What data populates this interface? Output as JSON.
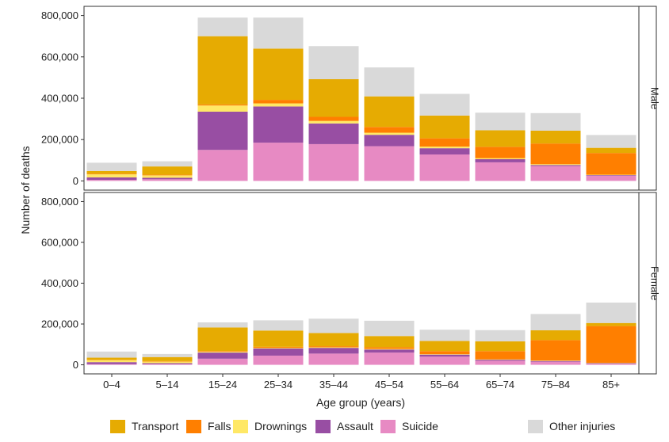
{
  "chart_data": {
    "type": "bar",
    "stacked": true,
    "facets": [
      "Male",
      "Female"
    ],
    "categories": [
      "0–4",
      "5–14",
      "15–24",
      "25–34",
      "35–44",
      "45–54",
      "55–64",
      "65–74",
      "75–84",
      "85+"
    ],
    "xlabel": "Age group (years)",
    "ylabel": "Number of deaths",
    "ylim": [
      0,
      800000
    ],
    "yticks": [
      0,
      200000,
      400000,
      600000,
      800000
    ],
    "ytick_labels": [
      "0",
      "200,000",
      "400,000",
      "600,000",
      "800,000"
    ],
    "legend_position": "bottom",
    "series_order": [
      "Suicide",
      "Assault",
      "Drownings",
      "Falls",
      "Transport",
      "Other injuries"
    ],
    "colors": {
      "Transport": "#e6ab02",
      "Falls": "#ff7f00",
      "Drownings": "#ffe866",
      "Assault": "#984ea3",
      "Suicide": "#e78ac3",
      "Other injuries": "#d9d9d9"
    },
    "panels": [
      {
        "facet": "Male",
        "series": [
          {
            "name": "Suicide",
            "values": [
              5000,
              8000,
              150000,
              185000,
              178000,
              168000,
              128000,
              90000,
              72000,
              25000
            ]
          },
          {
            "name": "Assault",
            "values": [
              12000,
              7000,
              185000,
              175000,
              100000,
              55000,
              30000,
              15000,
              5000,
              3000
            ]
          },
          {
            "name": "Drownings",
            "values": [
              15000,
              12000,
              30000,
              15000,
              12000,
              10000,
              8000,
              5000,
              4000,
              2000
            ]
          },
          {
            "name": "Falls",
            "values": [
              3000,
              3000,
              5000,
              17000,
              20000,
              28000,
              40000,
              55000,
              100000,
              105000
            ]
          },
          {
            "name": "Transport",
            "values": [
              13000,
              40000,
              330000,
              248000,
              182000,
              148000,
              110000,
              80000,
              62000,
              25000
            ]
          },
          {
            "name": "Other injuries",
            "values": [
              40000,
              25000,
              90000,
              150000,
              160000,
              140000,
              105000,
              85000,
              85000,
              62000
            ]
          }
        ]
      },
      {
        "facet": "Female",
        "series": [
          {
            "name": "Suicide",
            "values": [
              3000,
              3000,
              30000,
              45000,
              55000,
              60000,
              40000,
              20000,
              15000,
              5000
            ]
          },
          {
            "name": "Assault",
            "values": [
              10000,
              5000,
              30000,
              35000,
              28000,
              15000,
              10000,
              5000,
              4000,
              3000
            ]
          },
          {
            "name": "Drownings",
            "values": [
              10000,
              8000,
              5000,
              3000,
              3000,
              3000,
              2000,
              2000,
              2000,
              2000
            ]
          },
          {
            "name": "Falls",
            "values": [
              2000,
              2000,
              3000,
              5000,
              5000,
              8000,
              15000,
              40000,
              100000,
              180000
            ]
          },
          {
            "name": "Transport",
            "values": [
              10000,
              20000,
              115000,
              80000,
              65000,
              55000,
              50000,
              48000,
              48000,
              15000
            ]
          },
          {
            "name": "Other injuries",
            "values": [
              30000,
              15000,
              25000,
              50000,
              70000,
              75000,
              55000,
              55000,
              80000,
              100000
            ]
          }
        ]
      }
    ]
  },
  "legend": {
    "items": [
      {
        "label": "Transport",
        "color": "#e6ab02"
      },
      {
        "label": "Falls",
        "color": "#ff7f00"
      },
      {
        "label": "Drownings",
        "color": "#ffe866"
      },
      {
        "label": "Assault",
        "color": "#984ea3"
      },
      {
        "label": "Suicide",
        "color": "#e78ac3"
      },
      {
        "label": "Other injuries",
        "color": "#d9d9d9"
      }
    ]
  }
}
